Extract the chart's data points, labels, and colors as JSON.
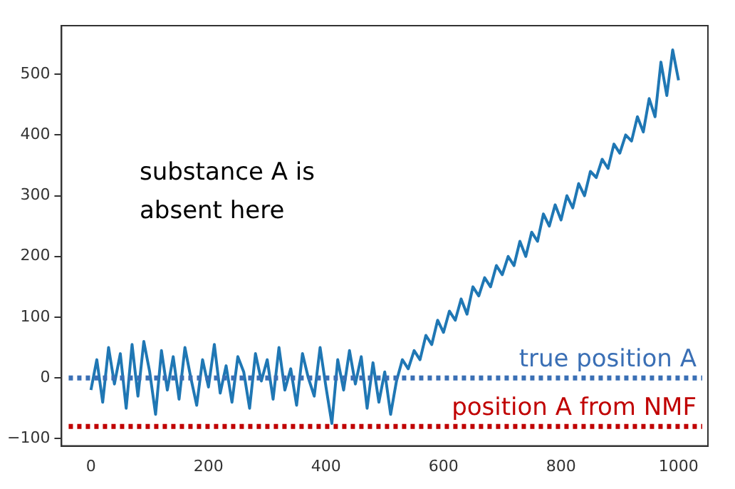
{
  "chart_data": {
    "type": "line",
    "color": "#1f77b4",
    "x": [
      0,
      10,
      20,
      30,
      40,
      50,
      60,
      70,
      80,
      90,
      100,
      110,
      120,
      130,
      140,
      150,
      160,
      170,
      180,
      190,
      200,
      210,
      220,
      230,
      240,
      250,
      260,
      270,
      280,
      290,
      300,
      310,
      320,
      330,
      340,
      350,
      360,
      370,
      380,
      390,
      400,
      410,
      420,
      430,
      440,
      450,
      460,
      470,
      480,
      490,
      500,
      510,
      520,
      530,
      540,
      550,
      560,
      570,
      580,
      590,
      600,
      610,
      620,
      630,
      640,
      650,
      660,
      670,
      680,
      690,
      700,
      710,
      720,
      730,
      740,
      750,
      760,
      770,
      780,
      790,
      800,
      810,
      820,
      830,
      840,
      850,
      860,
      870,
      880,
      890,
      900,
      910,
      920,
      930,
      940,
      950,
      960,
      970,
      980,
      990,
      1000
    ],
    "values": [
      -20,
      30,
      -40,
      50,
      -10,
      40,
      -50,
      55,
      -30,
      60,
      10,
      -60,
      45,
      -20,
      35,
      -35,
      50,
      0,
      -45,
      30,
      -15,
      55,
      -25,
      20,
      -40,
      35,
      10,
      -50,
      40,
      -5,
      30,
      -35,
      50,
      -20,
      15,
      -45,
      40,
      0,
      -30,
      50,
      -15,
      -75,
      30,
      -20,
      45,
      -10,
      35,
      -50,
      25,
      -40,
      10,
      -60,
      -5,
      30,
      15,
      45,
      30,
      70,
      55,
      95,
      75,
      110,
      95,
      130,
      105,
      150,
      135,
      165,
      150,
      185,
      170,
      200,
      185,
      225,
      200,
      240,
      225,
      270,
      250,
      285,
      260,
      300,
      280,
      320,
      300,
      340,
      330,
      360,
      345,
      385,
      370,
      400,
      390,
      430,
      405,
      460,
      430,
      520,
      465,
      540,
      490
    ],
    "xlim": [
      -50,
      1050
    ],
    "ylim": [
      -112,
      580
    ],
    "xticks": [
      0,
      200,
      400,
      600,
      800,
      1000
    ],
    "yticks": [
      -100,
      0,
      100,
      200,
      300,
      400,
      500
    ],
    "grid": false,
    "legend": false,
    "marker": "none",
    "line_style": "solid",
    "ref_lines": [
      {
        "axis": "y",
        "value": 0,
        "label": "true position A",
        "color": "#3a6fb5",
        "line_style": "dotted"
      },
      {
        "axis": "y",
        "value": -80,
        "label": "position A from NMF",
        "color": "#c00000",
        "line_style": "dotted"
      }
    ],
    "annotations": [
      "substance A is absent here"
    ]
  }
}
